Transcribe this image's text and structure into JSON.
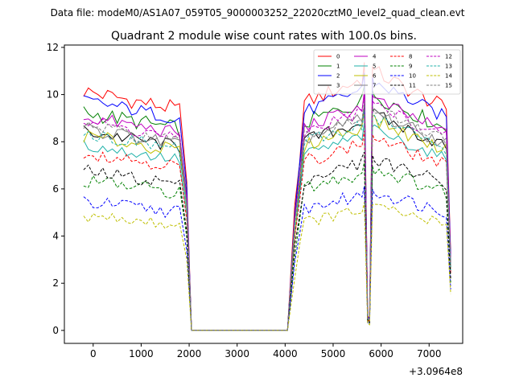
{
  "figure": {
    "suptitle": "Data file: modeM0/AS1A07_059T05_9000003252_22020cztM0_level2_quad_clean.evt"
  },
  "chart_data": {
    "type": "line",
    "title": "Quadrant 2 module wise count rates with 100.0s bins.",
    "xlabel": "",
    "ylabel": "",
    "x_offset_label": "+3.0964e8",
    "xlim": [
      -600,
      7700
    ],
    "ylim": [
      -0.55,
      12.1
    ],
    "xticks": [
      0,
      1000,
      2000,
      3000,
      4000,
      5000,
      6000,
      7000
    ],
    "xtick_labels": [
      "0",
      "1000",
      "2000",
      "3000",
      "4000",
      "5000",
      "6000",
      "7000"
    ],
    "yticks": [
      0,
      2,
      4,
      6,
      8,
      10,
      12
    ],
    "ytick_labels": [
      "0",
      "2",
      "4",
      "6",
      "8",
      "10",
      "12"
    ],
    "grid": false,
    "legend_placement": "top-right",
    "legend_columns": 4,
    "segments": [
      [
        -200,
        1850
      ],
      [
        4200,
        5620
      ],
      [
        5860,
        7400
      ]
    ],
    "segment_step": 100,
    "gaps": {
      "first_drop_end": 2050,
      "flat_end": 4050,
      "dip_start": 5720,
      "dip_end": 5760
    },
    "series": [
      {
        "name": "0",
        "color": "#ff0000",
        "dash": "solid",
        "level": 10.15,
        "jitter": 0.35
      },
      {
        "name": "1",
        "color": "#008000",
        "dash": "solid",
        "level": 9.25,
        "jitter": 0.35
      },
      {
        "name": "2",
        "color": "#0000ff",
        "dash": "solid",
        "level": 9.75,
        "jitter": 0.3
      },
      {
        "name": "3",
        "color": "#000000",
        "dash": "solid",
        "level": 8.45,
        "jitter": 0.3
      },
      {
        "name": "4",
        "color": "#bf00bf",
        "dash": "solid",
        "level": 9.05,
        "jitter": 0.3
      },
      {
        "name": "5",
        "color": "#20b2aa",
        "dash": "solid",
        "level": 7.85,
        "jitter": 0.25
      },
      {
        "name": "6",
        "color": "#bfbf00",
        "dash": "solid",
        "level": 8.25,
        "jitter": 0.3
      },
      {
        "name": "7",
        "color": "#808080",
        "dash": "solid",
        "level": 8.55,
        "jitter": 0.3
      },
      {
        "name": "8",
        "color": "#ff0000",
        "dash": "dashed",
        "level": 7.55,
        "jitter": 0.3
      },
      {
        "name": "9",
        "color": "#008000",
        "dash": "dashed",
        "level": 6.35,
        "jitter": 0.3
      },
      {
        "name": "10",
        "color": "#0000ff",
        "dash": "dashed",
        "level": 5.45,
        "jitter": 0.3
      },
      {
        "name": "11",
        "color": "#000000",
        "dash": "dashed",
        "level": 6.75,
        "jitter": 0.3
      },
      {
        "name": "12",
        "color": "#bf00bf",
        "dash": "dashed",
        "level": 8.85,
        "jitter": 0.3
      },
      {
        "name": "13",
        "color": "#20b2aa",
        "dash": "dashed",
        "level": 8.35,
        "jitter": 0.3
      },
      {
        "name": "14",
        "color": "#bfbf00",
        "dash": "dashed",
        "level": 4.85,
        "jitter": 0.25
      },
      {
        "name": "15",
        "color": "#808080",
        "dash": "dashed",
        "level": 8.65,
        "jitter": 0.3
      }
    ]
  }
}
